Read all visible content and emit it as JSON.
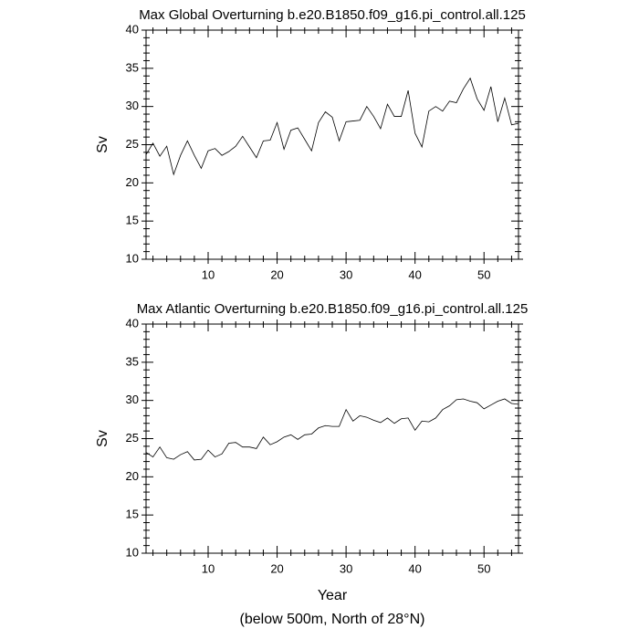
{
  "chart_data": [
    {
      "type": "line",
      "title": "Max Global Overturning b.e20.B1850.f09_g16.pi_control.all.125",
      "y_label": "Sv",
      "color": "#000000",
      "x": [
        1,
        2,
        3,
        4,
        5,
        6,
        7,
        8,
        9,
        10,
        11,
        12,
        13,
        14,
        15,
        16,
        17,
        18,
        19,
        20,
        21,
        22,
        23,
        24,
        25,
        26,
        27,
        28,
        29,
        30,
        31,
        32,
        33,
        34,
        35,
        36,
        37,
        38,
        39,
        40,
        41,
        42,
        43,
        44,
        45,
        46,
        47,
        48,
        49,
        50,
        51,
        52,
        53,
        54,
        55
      ],
      "values": [
        23.7,
        25.2,
        23.5,
        24.8,
        21.1,
        23.6,
        25.5,
        23.6,
        21.9,
        24.2,
        24.5,
        23.6,
        24.1,
        24.8,
        26.1,
        24.7,
        23.3,
        25.5,
        25.6,
        27.9,
        24.4,
        26.9,
        27.2,
        25.7,
        24.2,
        27.9,
        29.3,
        28.6,
        25.5,
        28.0,
        28.1,
        28.2,
        30.0,
        28.7,
        27.1,
        30.3,
        28.7,
        28.7,
        32.1,
        26.5,
        24.7,
        29.4,
        30.0,
        29.4,
        30.7,
        30.5,
        32.3,
        33.7,
        31.0,
        29.5,
        32.6,
        28.0,
        31.1,
        27.6,
        27.8
      ],
      "xlim": [
        1,
        55
      ],
      "xticks": [
        10,
        20,
        30,
        40,
        50
      ],
      "ylim": [
        10,
        40
      ],
      "yticks": [
        10,
        15,
        20,
        25,
        30,
        35,
        40
      ]
    },
    {
      "type": "line",
      "title": "Max Atlantic Overturning b.e20.B1850.f09_g16.pi_control.all.125",
      "x_label": "Year",
      "y_label": "Sv",
      "footnote": "(below 500m, North of 28°N)",
      "color": "#000000",
      "x": [
        1,
        2,
        3,
        4,
        5,
        6,
        7,
        8,
        9,
        10,
        11,
        12,
        13,
        14,
        15,
        16,
        17,
        18,
        19,
        20,
        21,
        22,
        23,
        24,
        25,
        26,
        27,
        28,
        29,
        30,
        31,
        32,
        33,
        34,
        35,
        36,
        37,
        38,
        39,
        40,
        41,
        42,
        43,
        44,
        45,
        46,
        47,
        48,
        49,
        50,
        51,
        52,
        53,
        54,
        55
      ],
      "values": [
        23.2,
        22.6,
        23.9,
        22.5,
        22.3,
        22.9,
        23.3,
        22.2,
        22.3,
        23.5,
        22.6,
        23.0,
        24.4,
        24.5,
        23.9,
        23.9,
        23.7,
        25.2,
        24.2,
        24.6,
        25.2,
        25.5,
        24.9,
        25.5,
        25.6,
        26.4,
        26.7,
        26.6,
        26.6,
        28.8,
        27.3,
        28.0,
        27.8,
        27.4,
        27.1,
        27.7,
        27.0,
        27.6,
        27.7,
        26.1,
        27.3,
        27.2,
        27.7,
        28.8,
        29.3,
        30.1,
        30.2,
        29.9,
        29.7,
        28.9,
        29.4,
        29.9,
        30.2,
        29.6,
        29.5
      ],
      "xlim": [
        1,
        55
      ],
      "xticks": [
        10,
        20,
        30,
        40,
        50
      ],
      "ylim": [
        10,
        40
      ],
      "yticks": [
        10,
        15,
        20,
        25,
        30,
        35,
        40
      ]
    }
  ]
}
